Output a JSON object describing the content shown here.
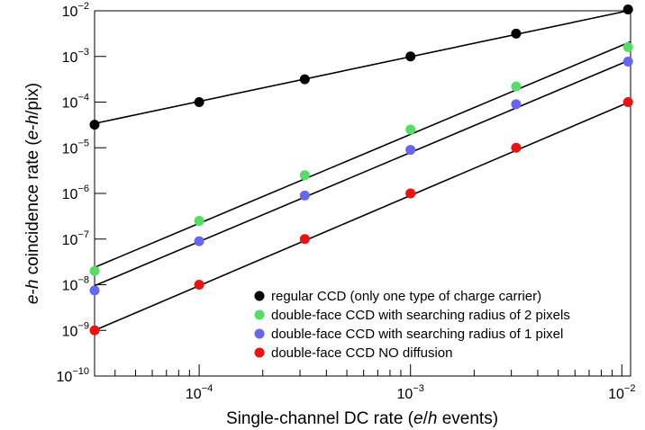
{
  "chart_data": {
    "type": "scatter",
    "xlabel": "Single-channel DC rate (e/h events)",
    "xlabel_parts": [
      "Single-channel DC rate (",
      "e",
      "/",
      "h",
      " events)"
    ],
    "ylabel": "e-h coincidence rate (e-h/pix)",
    "ylabel_parts": [
      "e",
      "-",
      "h",
      " coincidence rate (",
      "e",
      "-",
      "h",
      "/pix)"
    ],
    "x_scale": "log",
    "y_scale": "log",
    "xlim": [
      3.2e-05,
      0.011
    ],
    "ylim": [
      1e-10,
      0.01
    ],
    "x_ticks": [
      {
        "value": 0.0001,
        "base": "10",
        "exp": "−4"
      },
      {
        "value": 0.001,
        "base": "10",
        "exp": "−3"
      },
      {
        "value": 0.01,
        "base": "10",
        "exp": "−2"
      }
    ],
    "y_ticks": [
      {
        "value": 1e-10,
        "base": "10",
        "exp": "−10"
      },
      {
        "value": 1e-09,
        "base": "10",
        "exp": "−9"
      },
      {
        "value": 1e-08,
        "base": "10",
        "exp": "−8"
      },
      {
        "value": 1e-07,
        "base": "10",
        "exp": "−7"
      },
      {
        "value": 1e-06,
        "base": "10",
        "exp": "−6"
      },
      {
        "value": 1e-05,
        "base": "10",
        "exp": "−5"
      },
      {
        "value": 0.0001,
        "base": "10",
        "exp": "−4"
      },
      {
        "value": 0.001,
        "base": "10",
        "exp": "−3"
      },
      {
        "value": 0.01,
        "base": "10",
        "exp": "−2"
      }
    ],
    "grid": false,
    "legend_position": "bottom-right",
    "series": [
      {
        "name": "regular CCD (only one type of charge carrier)",
        "color": "#000000",
        "x": [
          3.2e-05,
          0.0001,
          0.000316,
          0.001,
          0.00316,
          0.0107
        ],
        "y": [
          3.2e-05,
          0.0001,
          0.000316,
          0.001,
          0.00316,
          0.0107
        ],
        "fit_line": {
          "x": [
            3.2e-05,
            0.011
          ],
          "y": [
            3.4e-05,
            0.0103
          ]
        }
      },
      {
        "name": "double-face CCD with searching radius of 2 pixels",
        "color": "#55dd66",
        "x": [
          3.2e-05,
          0.0001,
          0.000316,
          0.001,
          0.00316,
          0.0107
        ],
        "y": [
          2e-08,
          2.5e-07,
          2.5e-06,
          2.5e-05,
          0.00022,
          0.0016
        ],
        "fit_line": {
          "x": [
            3.2e-05,
            0.011
          ],
          "y": [
            2.4e-08,
            0.0021
          ]
        }
      },
      {
        "name": "double-face CCD with searching radius of 1 pixel",
        "color": "#6666ee",
        "x": [
          3.2e-05,
          0.0001,
          0.000316,
          0.001,
          0.00316,
          0.0107
        ],
        "y": [
          7.5e-09,
          9e-08,
          9e-07,
          9e-06,
          9e-05,
          0.00077
        ],
        "fit_line": {
          "x": [
            3.2e-05,
            0.011
          ],
          "y": [
            9.5e-09,
            0.00085
          ]
        }
      },
      {
        "name": "double-face CCD NO diffusion",
        "color": "#ee1111",
        "x": [
          3.2e-05,
          0.0001,
          0.000316,
          0.001,
          0.00316,
          0.0107
        ],
        "y": [
          1e-09,
          1e-08,
          1e-07,
          1e-06,
          1e-05,
          0.0001
        ],
        "fit_line": {
          "x": [
            3.2e-05,
            0.011
          ],
          "y": [
            1e-09,
            0.000103
          ]
        }
      }
    ]
  }
}
